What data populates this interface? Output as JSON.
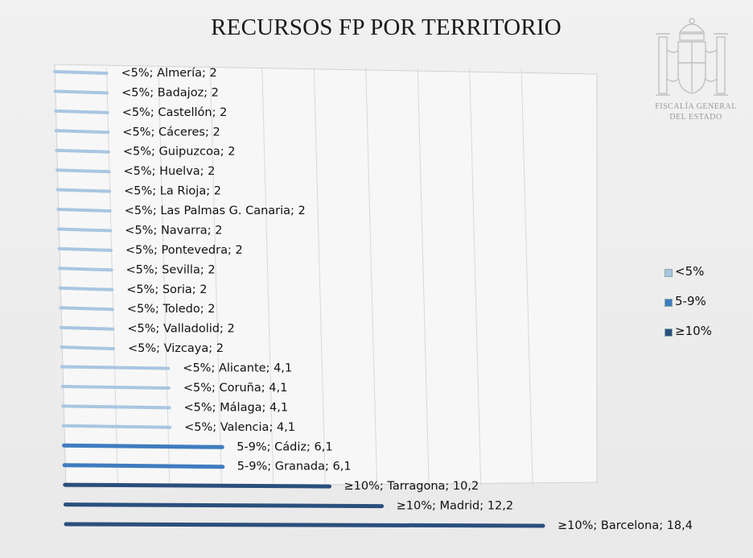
{
  "title": "RECURSOS FP POR TERRITORIO",
  "seal": {
    "line1": "FISCALÍA GENERAL",
    "line2": "DEL ESTADO"
  },
  "chart_data": {
    "type": "bar",
    "orientation": "horizontal",
    "title": "RECURSOS FP POR TERRITORIO",
    "grid": true,
    "legend_position": "right",
    "series": [
      {
        "name": "<5%",
        "color": "#a9c6e1"
      },
      {
        "name": "5-9%",
        "color": "#3f7cbf"
      },
      {
        "name": "≥10%",
        "color": "#2a4f7d"
      }
    ],
    "points": [
      {
        "group": "<5%",
        "category": "Almería",
        "value": 2,
        "label": "<5%; Almería; 2"
      },
      {
        "group": "<5%",
        "category": "Badajoz",
        "value": 2,
        "label": "<5%; Badajoz; 2"
      },
      {
        "group": "<5%",
        "category": "Castellón",
        "value": 2,
        "label": "<5%; Castellón; 2"
      },
      {
        "group": "<5%",
        "category": "Cáceres",
        "value": 2,
        "label": "<5%; Cáceres; 2"
      },
      {
        "group": "<5%",
        "category": "Guipuzcoa",
        "value": 2,
        "label": "<5%; Guipuzcoa; 2"
      },
      {
        "group": "<5%",
        "category": "Huelva",
        "value": 2,
        "label": "<5%; Huelva; 2"
      },
      {
        "group": "<5%",
        "category": "La Rioja",
        "value": 2,
        "label": "<5%; La Rioja; 2"
      },
      {
        "group": "<5%",
        "category": "Las Palmas G. Canaria",
        "value": 2,
        "label": "<5%; Las Palmas G. Canaria; 2"
      },
      {
        "group": "<5%",
        "category": "Navarra",
        "value": 2,
        "label": "<5%; Navarra; 2"
      },
      {
        "group": "<5%",
        "category": "Pontevedra",
        "value": 2,
        "label": "<5%; Pontevedra; 2"
      },
      {
        "group": "<5%",
        "category": "Sevilla",
        "value": 2,
        "label": "<5%; Sevilla; 2"
      },
      {
        "group": "<5%",
        "category": "Soria",
        "value": 2,
        "label": "<5%; Soria; 2"
      },
      {
        "group": "<5%",
        "category": "Toledo",
        "value": 2,
        "label": "<5%; Toledo; 2"
      },
      {
        "group": "<5%",
        "category": "Valladolid",
        "value": 2,
        "label": "<5%; Valladolid; 2"
      },
      {
        "group": "<5%",
        "category": "Vizcaya",
        "value": 2,
        "label": "<5%; Vizcaya; 2"
      },
      {
        "group": "<5%",
        "category": "Alicante",
        "value": 4.1,
        "label": "<5%; Alicante; 4,1"
      },
      {
        "group": "<5%",
        "category": "Coruña",
        "value": 4.1,
        "label": "<5%; Coruña; 4,1"
      },
      {
        "group": "<5%",
        "category": "Málaga",
        "value": 4.1,
        "label": "<5%; Málaga; 4,1"
      },
      {
        "group": "<5%",
        "category": "Valencia",
        "value": 4.1,
        "label": "<5%; Valencia; 4,1"
      },
      {
        "group": "5-9%",
        "category": "Cádiz",
        "value": 6.1,
        "label": "5-9%; Cádiz; 6,1"
      },
      {
        "group": "5-9%",
        "category": "Granada",
        "value": 6.1,
        "label": "5-9%; Granada; 6,1"
      },
      {
        "group": "≥10%",
        "category": "Tarragona",
        "value": 10.2,
        "label": "≥10%; Tarragona; 10,2"
      },
      {
        "group": "≥10%",
        "category": "Madrid",
        "value": 12.2,
        "label": "≥10%; Madrid; 12,2"
      },
      {
        "group": "≥10%",
        "category": "Barcelona",
        "value": 18.4,
        "label": "≥10%; Barcelona; 18,4"
      }
    ]
  }
}
